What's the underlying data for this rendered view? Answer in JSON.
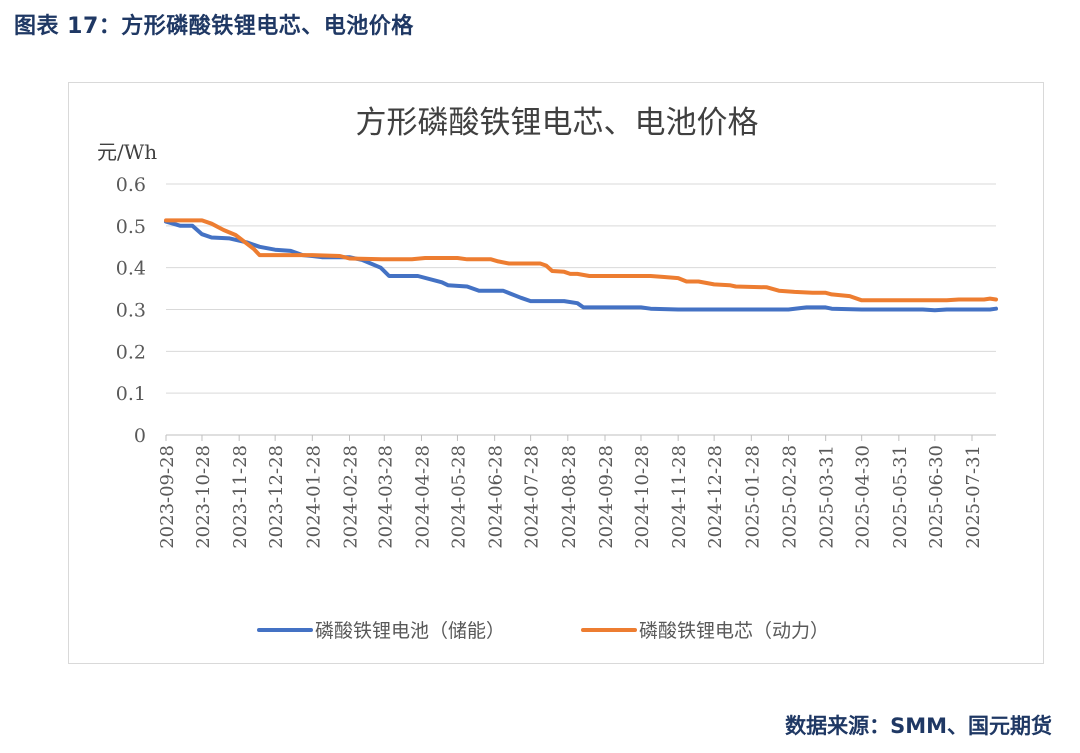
{
  "caption": "图表 17：方形磷酸铁锂电芯、电池价格",
  "source": "数据来源：SMM、国元期货",
  "colors": {
    "caption": "#1f3864",
    "storage_battery": "#4472c4",
    "power_cell": "#ed7d31",
    "grid": "#d9d9d9",
    "axis_text": "#595959"
  },
  "chart_data": {
    "type": "line",
    "title": "方形磷酸铁锂电芯、电池价格",
    "ylabel": "元/Wh",
    "xlabel": "",
    "ylim": [
      0,
      0.6
    ],
    "yticks": [
      "0",
      "0.1",
      "0.2",
      "0.3",
      "0.4",
      "0.5",
      "0.6"
    ],
    "grid": true,
    "legend_position": "bottom",
    "xticks": [
      "2023-09-28",
      "2023-10-28",
      "2023-11-28",
      "2023-12-28",
      "2024-01-28",
      "2024-02-28",
      "2024-03-28",
      "2024-04-28",
      "2024-05-28",
      "2024-06-28",
      "2024-07-28",
      "2024-08-28",
      "2024-09-28",
      "2024-10-28",
      "2024-11-28",
      "2024-12-28",
      "2025-01-28",
      "2025-02-28",
      "2025-03-31",
      "2025-04-30",
      "2025-05-31",
      "2025-06-30",
      "2025-07-31"
    ],
    "x_end": "2025-08-20",
    "series": [
      {
        "name": "磷酸铁锂电池（储能）",
        "color": "#4472c4",
        "points": [
          [
            "2023-09-28",
            0.51
          ],
          [
            "2023-10-10",
            0.5
          ],
          [
            "2023-10-20",
            0.5
          ],
          [
            "2023-10-28",
            0.48
          ],
          [
            "2023-11-05",
            0.472
          ],
          [
            "2023-11-20",
            0.47
          ],
          [
            "2023-12-05",
            0.46
          ],
          [
            "2023-12-15",
            0.45
          ],
          [
            "2023-12-28",
            0.443
          ],
          [
            "2024-01-10",
            0.44
          ],
          [
            "2024-01-20",
            0.43
          ],
          [
            "2024-01-28",
            0.428
          ],
          [
            "2024-02-05",
            0.425
          ],
          [
            "2024-02-28",
            0.425
          ],
          [
            "2024-03-10",
            0.418
          ],
          [
            "2024-03-25",
            0.4
          ],
          [
            "2024-04-01",
            0.38
          ],
          [
            "2024-04-25",
            0.38
          ],
          [
            "2024-05-15",
            0.365
          ],
          [
            "2024-05-20",
            0.358
          ],
          [
            "2024-06-05",
            0.355
          ],
          [
            "2024-06-15",
            0.345
          ],
          [
            "2024-07-05",
            0.345
          ],
          [
            "2024-07-20",
            0.328
          ],
          [
            "2024-07-28",
            0.32
          ],
          [
            "2024-08-25",
            0.32
          ],
          [
            "2024-09-05",
            0.315
          ],
          [
            "2024-09-10",
            0.305
          ],
          [
            "2024-10-28",
            0.305
          ],
          [
            "2024-11-05",
            0.302
          ],
          [
            "2024-11-28",
            0.3
          ],
          [
            "2025-02-28",
            0.3
          ],
          [
            "2025-03-15",
            0.305
          ],
          [
            "2025-03-31",
            0.305
          ],
          [
            "2025-04-05",
            0.302
          ],
          [
            "2025-04-30",
            0.3
          ],
          [
            "2025-06-20",
            0.3
          ],
          [
            "2025-06-30",
            0.298
          ],
          [
            "2025-07-10",
            0.3
          ],
          [
            "2025-08-15",
            0.3
          ],
          [
            "2025-08-20",
            0.302
          ]
        ]
      },
      {
        "name": "磷酸铁锂电芯（动力）",
        "color": "#ed7d31",
        "points": [
          [
            "2023-09-28",
            0.513
          ],
          [
            "2023-10-28",
            0.513
          ],
          [
            "2023-11-05",
            0.505
          ],
          [
            "2023-11-15",
            0.49
          ],
          [
            "2023-11-25",
            0.478
          ],
          [
            "2023-12-10",
            0.445
          ],
          [
            "2023-12-15",
            0.43
          ],
          [
            "2024-01-28",
            0.43
          ],
          [
            "2024-02-20",
            0.428
          ],
          [
            "2024-02-28",
            0.422
          ],
          [
            "2024-03-28",
            0.42
          ],
          [
            "2024-04-20",
            0.42
          ],
          [
            "2024-05-01",
            0.423
          ],
          [
            "2024-05-28",
            0.423
          ],
          [
            "2024-06-05",
            0.42
          ],
          [
            "2024-06-25",
            0.42
          ],
          [
            "2024-07-01",
            0.415
          ],
          [
            "2024-07-10",
            0.41
          ],
          [
            "2024-08-05",
            0.41
          ],
          [
            "2024-08-10",
            0.405
          ],
          [
            "2024-08-15",
            0.392
          ],
          [
            "2024-08-25",
            0.39
          ],
          [
            "2024-08-30",
            0.385
          ],
          [
            "2024-09-05",
            0.385
          ],
          [
            "2024-09-15",
            0.38
          ],
          [
            "2024-11-05",
            0.38
          ],
          [
            "2024-11-15",
            0.378
          ],
          [
            "2024-11-28",
            0.375
          ],
          [
            "2024-12-05",
            0.367
          ],
          [
            "2024-12-15",
            0.367
          ],
          [
            "2024-12-28",
            0.36
          ],
          [
            "2025-01-10",
            0.358
          ],
          [
            "2025-01-15",
            0.355
          ],
          [
            "2025-02-10",
            0.353
          ],
          [
            "2025-02-20",
            0.345
          ],
          [
            "2025-03-05",
            0.342
          ],
          [
            "2025-03-20",
            0.34
          ],
          [
            "2025-03-31",
            0.34
          ],
          [
            "2025-04-05",
            0.336
          ],
          [
            "2025-04-20",
            0.332
          ],
          [
            "2025-04-30",
            0.322
          ],
          [
            "2025-07-10",
            0.322
          ],
          [
            "2025-07-20",
            0.324
          ],
          [
            "2025-08-10",
            0.324
          ],
          [
            "2025-08-15",
            0.326
          ],
          [
            "2025-08-20",
            0.324
          ]
        ]
      }
    ]
  }
}
